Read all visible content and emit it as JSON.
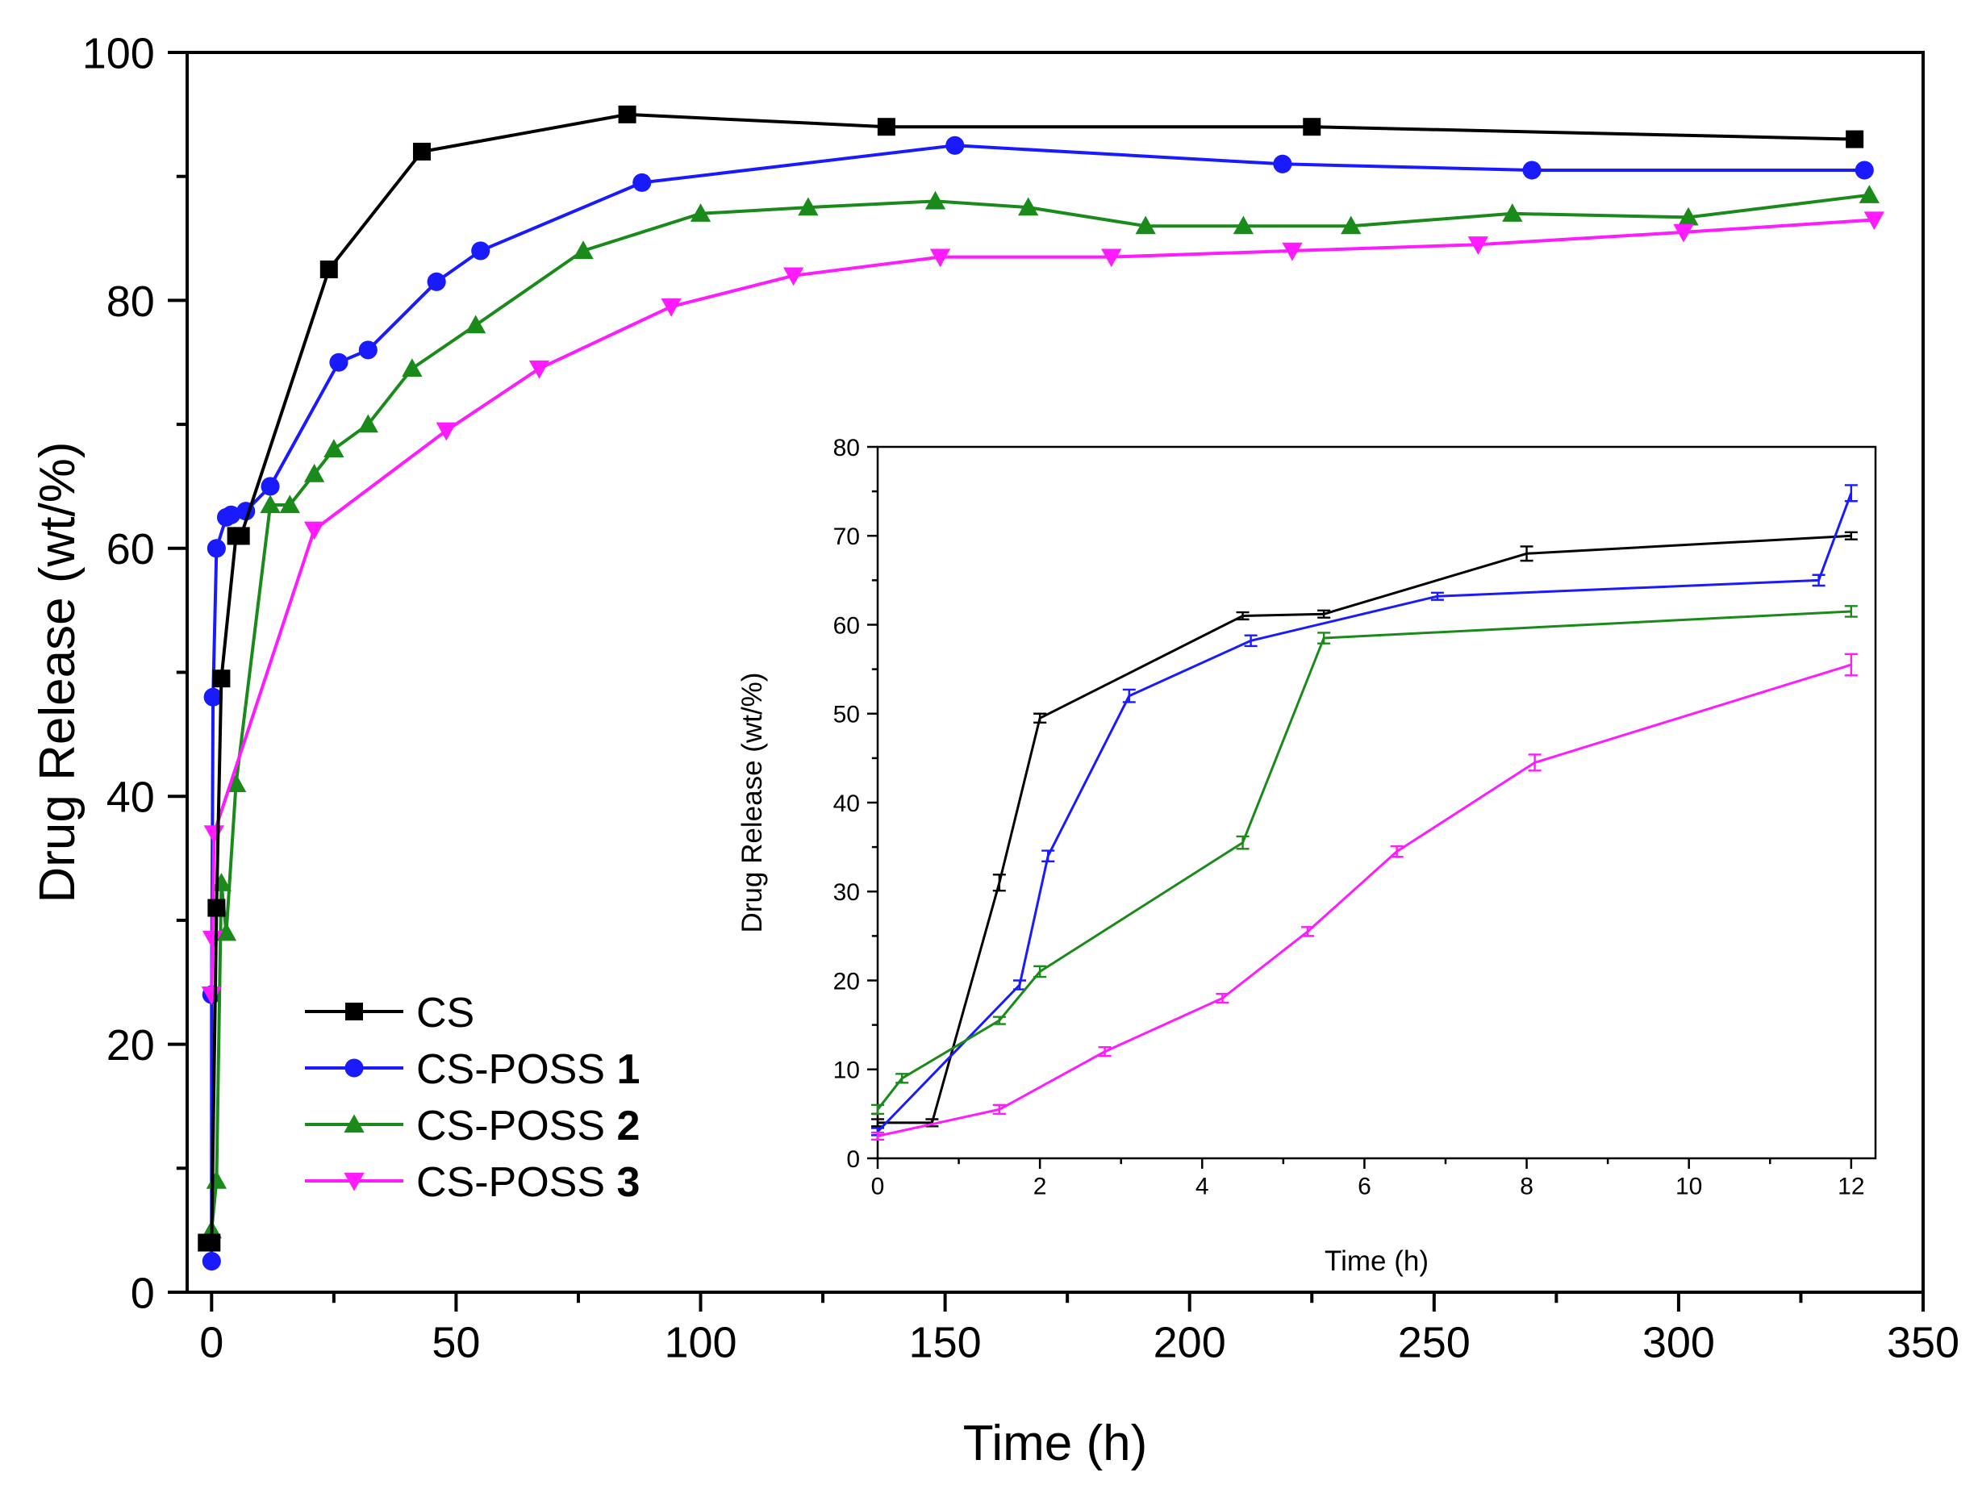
{
  "colors": {
    "CS": "#000000",
    "CS-POSS 1": "#1a1aff",
    "CS-POSS 2": "#1a8a1a",
    "CS-POSS 3": "#ff1aff"
  },
  "legend": {
    "entries": [
      {
        "prefix": "CS",
        "suffix": "",
        "marker": "square",
        "color": "#000000"
      },
      {
        "prefix": "CS-POSS ",
        "suffix": "1",
        "marker": "circle",
        "color": "#1a1aff"
      },
      {
        "prefix": "CS-POSS ",
        "suffix": "2",
        "marker": "triangle-up",
        "color": "#1a8a1a"
      },
      {
        "prefix": "CS-POSS ",
        "suffix": "3",
        "marker": "triangle-down",
        "color": "#ff1aff"
      }
    ],
    "placement": "bottom-left"
  },
  "chart_data": [
    {
      "type": "line",
      "xlabel": "Time (h)",
      "ylabel": "Drug Release (wt/%)",
      "xlim": [
        -5,
        350
      ],
      "ylim": [
        0,
        100
      ],
      "xticks": [
        0,
        50,
        100,
        150,
        200,
        250,
        300,
        350
      ],
      "yticks": [
        0,
        20,
        40,
        60,
        80,
        100
      ],
      "grid": false,
      "series": [
        {
          "name": "CS-POSS 1",
          "color": "#1a1aff",
          "marker": "circle",
          "x": [
            0,
            0,
            0.3,
            1,
            3,
            4,
            7,
            12,
            26,
            32,
            46,
            55,
            88,
            152,
            219,
            270,
            338
          ],
          "y": [
            2.5,
            24,
            48,
            60,
            62.5,
            62.7,
            63,
            65,
            75,
            76,
            81.5,
            84,
            89.5,
            92.5,
            91,
            90.5,
            90.5
          ]
        },
        {
          "name": "CS-POSS 2",
          "color": "#1a8a1a",
          "marker": "triangle-up",
          "x": [
            0,
            1,
            2,
            3,
            5,
            12,
            16,
            21,
            25,
            32,
            41,
            54,
            76,
            100,
            122,
            148,
            167,
            191,
            211,
            233,
            266,
            302,
            339
          ],
          "y": [
            5,
            9,
            33,
            29,
            41,
            63.5,
            63.5,
            66,
            68,
            70,
            74.5,
            78,
            84,
            87,
            87.5,
            88,
            87.5,
            86,
            86,
            86,
            87,
            86.7,
            88.5
          ]
        },
        {
          "name": "CS-POSS 3",
          "color": "#ff1aff",
          "marker": "triangle-down",
          "x": [
            0,
            0.2,
            0.5,
            21,
            48,
            67,
            94,
            119,
            149,
            184,
            221,
            259,
            301,
            340
          ],
          "y": [
            24,
            28.5,
            37,
            61.5,
            69.5,
            74.5,
            79.5,
            82,
            83.5,
            83.5,
            84,
            84.5,
            85.5,
            86.5
          ]
        },
        {
          "name": "CS",
          "color": "#000000",
          "marker": "square",
          "x": [
            -1,
            0,
            1,
            2,
            5,
            6,
            24,
            43,
            85,
            138,
            225,
            336
          ],
          "y": [
            4,
            4,
            31,
            49.5,
            61,
            61,
            82.5,
            92,
            95,
            94,
            94,
            93
          ]
        }
      ]
    },
    {
      "type": "line",
      "inset": true,
      "xlabel": "Time (h)",
      "ylabel": "Drug Release (wt/%)",
      "xlim": [
        0,
        12.3
      ],
      "ylim": [
        0,
        80
      ],
      "xticks": [
        0,
        2,
        4,
        6,
        8,
        10,
        12
      ],
      "yticks": [
        0,
        10,
        20,
        30,
        40,
        50,
        60,
        70,
        80
      ],
      "grid": false,
      "error_bars": true,
      "series": [
        {
          "name": "CS",
          "color": "#000000",
          "x": [
            0,
            0.67,
            1.5,
            2,
            4.5,
            5.5,
            8,
            12
          ],
          "y": [
            4,
            4,
            31,
            49.5,
            61,
            61.2,
            68,
            70
          ],
          "err": [
            0.4,
            0.4,
            0.9,
            0.5,
            0.4,
            0.4,
            0.8,
            0.4
          ]
        },
        {
          "name": "CS-POSS 1",
          "color": "#1a1aff",
          "x": [
            0,
            1.75,
            2.1,
            3.1,
            4.6,
            6.9,
            11.6,
            12
          ],
          "y": [
            3,
            19.5,
            34,
            52,
            58.2,
            63.2,
            65,
            74.8
          ],
          "err": [
            0.4,
            0.5,
            0.6,
            0.7,
            0.6,
            0.4,
            0.6,
            0.9
          ]
        },
        {
          "name": "CS-POSS 2",
          "color": "#1a8a1a",
          "x": [
            0,
            0.3,
            1.5,
            2,
            4.5,
            5.5,
            12
          ],
          "y": [
            5.5,
            9,
            15.5,
            21,
            35.5,
            58.5,
            61.5
          ],
          "err": [
            0.5,
            0.5,
            0.4,
            0.6,
            0.7,
            0.6,
            0.6
          ]
        },
        {
          "name": "CS-POSS 3",
          "color": "#ff1aff",
          "x": [
            0,
            1.5,
            2.8,
            4.25,
            5.3,
            6.4,
            8.1,
            12
          ],
          "y": [
            2.5,
            5.5,
            12,
            18,
            25.5,
            34.5,
            44.5,
            55.5
          ],
          "err": [
            0.4,
            0.5,
            0.5,
            0.5,
            0.5,
            0.6,
            0.9,
            1.2
          ]
        }
      ]
    }
  ]
}
